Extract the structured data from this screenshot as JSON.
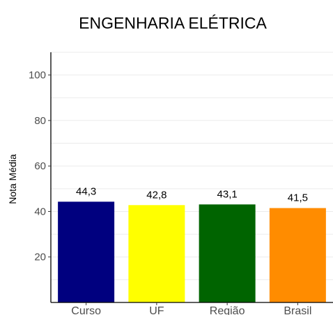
{
  "chart_data": {
    "type": "bar",
    "title": "ENGENHARIA ELÉTRICA",
    "xlabel": "",
    "ylabel": "Nota Média",
    "categories": [
      "Curso",
      "UF",
      "Região",
      "Brasil"
    ],
    "values": [
      44.3,
      42.8,
      43.1,
      41.5
    ],
    "value_labels": [
      "44,3",
      "42,8",
      "43,1",
      "41,5"
    ],
    "colors": [
      "#00007F",
      "#FFFF00",
      "#006400",
      "#FF8C00"
    ],
    "ylim": [
      0,
      110
    ],
    "yticks": [
      20,
      40,
      60,
      80,
      100
    ],
    "ytick_labels": [
      "20",
      "40",
      "60",
      "80",
      "100"
    ],
    "grid": true,
    "legend": "none"
  }
}
